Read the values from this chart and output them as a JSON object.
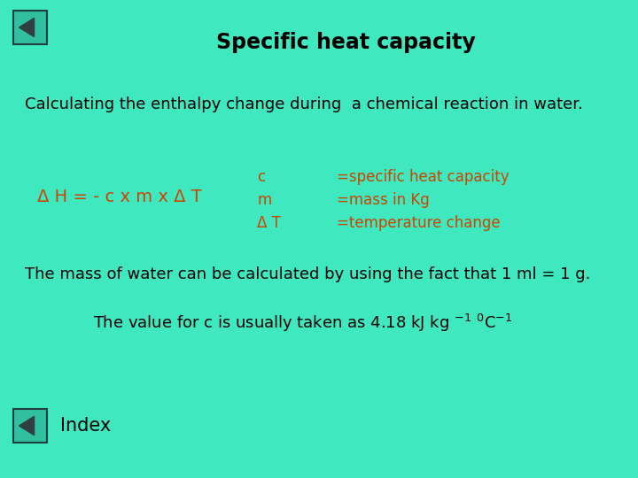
{
  "background_color": "#40E8C0",
  "title": "Specific heat capacity",
  "title_color": "#000000",
  "title_fontsize": 17,
  "font": "Comic Sans MS",
  "subtitle": "Calculating the enthalpy change during  a chemical reaction in water.",
  "subtitle_color": "#000000",
  "subtitle_fontsize": 13,
  "formula": "Δ H = - c x m x Δ T",
  "formula_color": "#cc4400",
  "formula_fontsize": 14,
  "definitions_left": [
    "c",
    "m",
    "Δ T"
  ],
  "definitions_right": [
    "=specific heat capacity",
    "=mass in Kg",
    "=temperature change"
  ],
  "def_color": "#cc4400",
  "def_fontsize": 12,
  "line3": "The mass of water can be calculated by using the fact that 1 ml = 1 g.",
  "line3_color": "#000000",
  "line3_fontsize": 13,
  "line4_main": "The value for c is usually taken as 4.18 kJ kg",
  "line4_color": "#000000",
  "line4_fontsize": 13,
  "index_text": "Index",
  "index_color": "#000000",
  "index_fontsize": 15,
  "nav_box_fill": "#30C0A0",
  "nav_box_border": "#204040",
  "nav_triangle_color": "#304040"
}
